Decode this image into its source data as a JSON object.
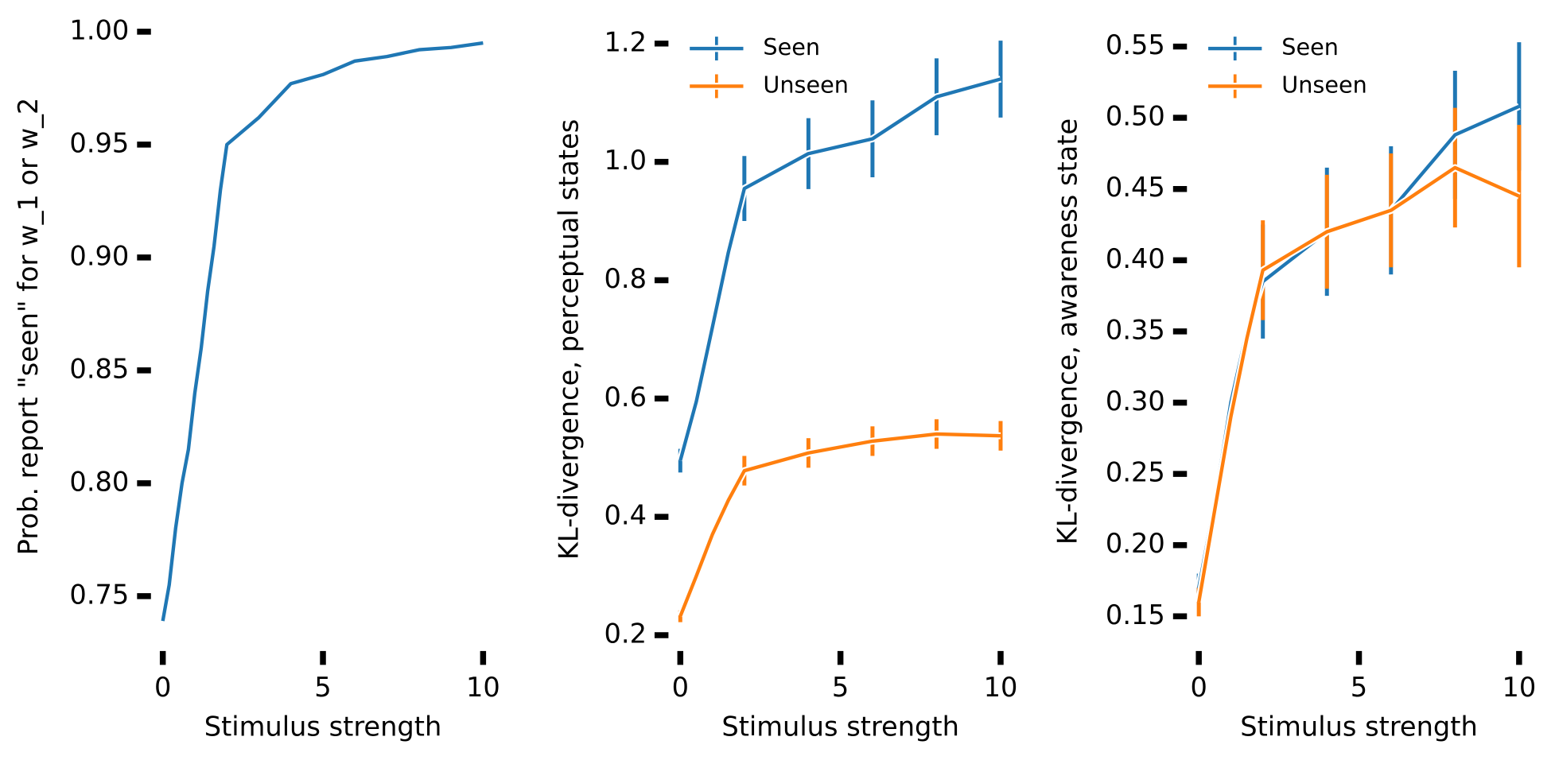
{
  "chart_data": [
    {
      "type": "line",
      "xlabel": "Stimulus strength",
      "ylabel": "Prob. report \"seen\" for w_1 or w_2",
      "x": [
        0,
        0.2,
        0.4,
        0.6,
        0.8,
        1.0,
        1.2,
        1.4,
        1.6,
        1.8,
        2.0,
        3.0,
        4.0,
        5.0,
        6.0,
        7.0,
        8.0,
        9.0,
        10
      ],
      "series": [
        {
          "name": null,
          "color": "#1f77b4",
          "values": [
            0.739,
            0.755,
            0.78,
            0.8,
            0.815,
            0.84,
            0.86,
            0.885,
            0.905,
            0.93,
            0.95,
            0.962,
            0.977,
            0.981,
            0.987,
            0.989,
            0.992,
            0.993,
            0.995
          ]
        }
      ],
      "xlim": [
        -0.2,
        10.2
      ],
      "xticks": [
        0,
        5,
        10
      ],
      "ylim": [
        0.738,
        1.001
      ],
      "yticks": [
        0.75,
        {
          "value": 0.8,
          "label": "0.80"
        },
        0.85,
        {
          "value": 0.9,
          "label": "0.90"
        },
        0.95,
        {
          "value": 1.0,
          "label": "1.00"
        }
      ],
      "grid": false
    },
    {
      "type": "line",
      "xlabel": "Stimulus strength",
      "ylabel": "KL-divergence, perceptual states",
      "x": [
        0,
        0.5,
        1,
        1.5,
        2,
        4,
        6,
        8,
        10
      ],
      "series": [
        {
          "name": "Seen",
          "color": "#1f77b4",
          "values": [
            0.495,
            0.595,
            0.72,
            0.847,
            0.955,
            1.014,
            1.039,
            1.11,
            1.14
          ],
          "errors": [
            0.02,
            null,
            null,
            null,
            0.055,
            0.06,
            0.065,
            0.065,
            0.065
          ]
        },
        {
          "name": "Unseen",
          "color": "#ff7f0e",
          "values": [
            0.232,
            0.3,
            0.37,
            0.428,
            0.478,
            0.508,
            0.528,
            0.54,
            0.537
          ],
          "errors": [
            0.01,
            null,
            null,
            null,
            0.025,
            0.025,
            0.025,
            0.025,
            0.025
          ]
        }
      ],
      "xlim": [
        -0.2,
        10.2
      ],
      "xticks": [
        0,
        5,
        10
      ],
      "ylim": [
        0.19,
        1.21
      ],
      "yticks": [
        0.2,
        0.4,
        0.6,
        0.8,
        {
          "value": 1.0,
          "label": "1.0"
        },
        {
          "value": 1.2,
          "label": "1.2"
        }
      ],
      "legend": "upper left",
      "grid": false
    },
    {
      "type": "line",
      "xlabel": "Stimulus strength",
      "ylabel": "KL-divergence, awareness state",
      "x": [
        0,
        0.5,
        1,
        1.5,
        2,
        4,
        6,
        8,
        10
      ],
      "series": [
        {
          "name": "Seen",
          "color": "#1f77b4",
          "values": [
            0.17,
            0.23,
            0.3,
            0.35,
            0.385,
            0.42,
            0.435,
            0.488,
            0.508
          ],
          "errors": [
            0.01,
            null,
            null,
            null,
            0.04,
            0.045,
            0.045,
            0.045,
            0.045
          ]
        },
        {
          "name": "Unseen",
          "color": "#ff7f0e",
          "values": [
            0.16,
            0.225,
            0.29,
            0.345,
            0.393,
            0.42,
            0.435,
            0.465,
            0.445
          ],
          "errors": [
            0.01,
            null,
            null,
            null,
            0.035,
            0.04,
            0.04,
            0.042,
            0.05
          ]
        }
      ],
      "xlim": [
        -0.2,
        10.2
      ],
      "xticks": [
        0,
        5,
        10
      ],
      "ylim": [
        0.14,
        0.56
      ],
      "yticks": [
        0.15,
        {
          "value": 0.2,
          "label": "0.20"
        },
        0.25,
        {
          "value": 0.3,
          "label": "0.30"
        },
        0.35,
        {
          "value": 0.4,
          "label": "0.40"
        },
        0.45,
        {
          "value": 0.5,
          "label": "0.50"
        },
        0.55
      ],
      "legend": "upper left",
      "grid": false
    }
  ]
}
